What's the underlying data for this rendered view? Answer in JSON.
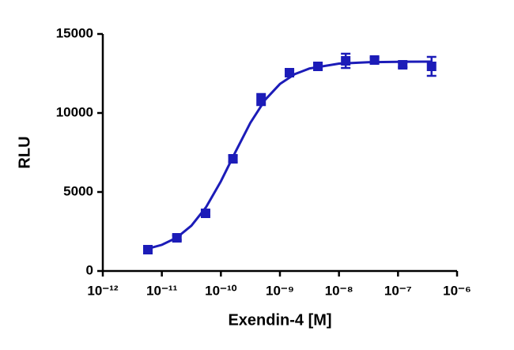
{
  "chart_data": {
    "type": "dose-response",
    "y_label": "RLU",
    "x_label": "Exendin-4 [M]",
    "x_log": true,
    "color": "#1c1cb8",
    "x": [
      5.8e-12,
      1.8e-11,
      5.5e-11,
      1.6e-10,
      4.8e-10,
      1.45e-09,
      4.4e-09,
      1.3e-08,
      4e-08,
      1.2e-07,
      3.7e-07
    ],
    "values": [
      1350,
      2100,
      3650,
      7100,
      10850,
      12550,
      12950,
      13300,
      13350,
      13050,
      12950
    ],
    "errors": [
      100,
      150,
      150,
      200,
      350,
      150,
      200,
      450,
      150,
      150,
      600
    ],
    "curve": {
      "x": [
        5.75e-12,
        1e-11,
        1.78e-11,
        3.16e-11,
        5.62e-11,
        1e-10,
        1.78e-10,
        3.16e-10,
        5.62e-10,
        1e-09,
        1.78e-09,
        3.16e-09,
        1e-08,
        3.16e-08,
        1e-07,
        3.7e-07
      ],
      "values": [
        1408,
        1655,
        2104,
        2863,
        4042,
        5668,
        7559,
        9377,
        10836,
        11833,
        12455,
        12814,
        13124,
        13214,
        13240,
        13248
      ]
    },
    "xlim": [
      1e-12,
      1e-06
    ],
    "xticks": [
      {
        "value": 1e-12,
        "label": "10⁻¹²"
      },
      {
        "value": 1e-11,
        "label": "10⁻¹¹"
      },
      {
        "value": 1e-10,
        "label": "10⁻¹⁰"
      },
      {
        "value": 1e-09,
        "label": "10⁻⁹"
      },
      {
        "value": 1e-08,
        "label": "10⁻⁸"
      },
      {
        "value": 1e-07,
        "label": "10⁻⁷"
      },
      {
        "value": 1e-06,
        "label": "10⁻⁶"
      }
    ],
    "ylim": [
      0,
      15000
    ],
    "yticks": [
      0,
      5000,
      10000,
      15000
    ]
  }
}
